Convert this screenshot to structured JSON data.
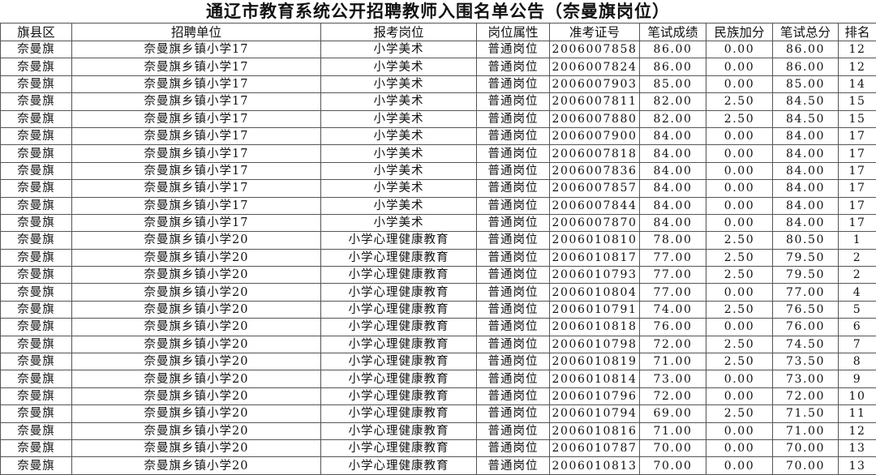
{
  "title": "通辽市教育系统公开招聘教师入围名单公告（奈曼旗岗位）",
  "columns": [
    "旗县区",
    "招聘单位",
    "报考岗位",
    "岗位属性",
    "准考证号",
    "笔试成绩",
    "民族加分",
    "笔试总分",
    "排名"
  ],
  "rows": [
    [
      "奈曼旗",
      "奈曼旗乡镇小学17",
      "小学美术",
      "普通岗位",
      "2006007858",
      "86.00",
      "0.00",
      "86.00",
      "12"
    ],
    [
      "奈曼旗",
      "奈曼旗乡镇小学17",
      "小学美术",
      "普通岗位",
      "2006007824",
      "86.00",
      "0.00",
      "86.00",
      "12"
    ],
    [
      "奈曼旗",
      "奈曼旗乡镇小学17",
      "小学美术",
      "普通岗位",
      "2006007903",
      "85.00",
      "0.00",
      "85.00",
      "14"
    ],
    [
      "奈曼旗",
      "奈曼旗乡镇小学17",
      "小学美术",
      "普通岗位",
      "2006007811",
      "82.00",
      "2.50",
      "84.50",
      "15"
    ],
    [
      "奈曼旗",
      "奈曼旗乡镇小学17",
      "小学美术",
      "普通岗位",
      "2006007880",
      "82.00",
      "2.50",
      "84.50",
      "15"
    ],
    [
      "奈曼旗",
      "奈曼旗乡镇小学17",
      "小学美术",
      "普通岗位",
      "2006007900",
      "84.00",
      "0.00",
      "84.00",
      "17"
    ],
    [
      "奈曼旗",
      "奈曼旗乡镇小学17",
      "小学美术",
      "普通岗位",
      "2006007818",
      "84.00",
      "0.00",
      "84.00",
      "17"
    ],
    [
      "奈曼旗",
      "奈曼旗乡镇小学17",
      "小学美术",
      "普通岗位",
      "2006007836",
      "84.00",
      "0.00",
      "84.00",
      "17"
    ],
    [
      "奈曼旗",
      "奈曼旗乡镇小学17",
      "小学美术",
      "普通岗位",
      "2006007857",
      "84.00",
      "0.00",
      "84.00",
      "17"
    ],
    [
      "奈曼旗",
      "奈曼旗乡镇小学17",
      "小学美术",
      "普通岗位",
      "2006007844",
      "84.00",
      "0.00",
      "84.00",
      "17"
    ],
    [
      "奈曼旗",
      "奈曼旗乡镇小学17",
      "小学美术",
      "普通岗位",
      "2006007870",
      "84.00",
      "0.00",
      "84.00",
      "17"
    ],
    [
      "奈曼旗",
      "奈曼旗乡镇小学20",
      "小学心理健康教育",
      "普通岗位",
      "2006010810",
      "78.00",
      "2.50",
      "80.50",
      "1"
    ],
    [
      "奈曼旗",
      "奈曼旗乡镇小学20",
      "小学心理健康教育",
      "普通岗位",
      "2006010817",
      "77.00",
      "2.50",
      "79.50",
      "2"
    ],
    [
      "奈曼旗",
      "奈曼旗乡镇小学20",
      "小学心理健康教育",
      "普通岗位",
      "2006010793",
      "77.00",
      "2.50",
      "79.50",
      "2"
    ],
    [
      "奈曼旗",
      "奈曼旗乡镇小学20",
      "小学心理健康教育",
      "普通岗位",
      "2006010804",
      "77.00",
      "0.00",
      "77.00",
      "4"
    ],
    [
      "奈曼旗",
      "奈曼旗乡镇小学20",
      "小学心理健康教育",
      "普通岗位",
      "2006010791",
      "74.00",
      "2.50",
      "76.50",
      "5"
    ],
    [
      "奈曼旗",
      "奈曼旗乡镇小学20",
      "小学心理健康教育",
      "普通岗位",
      "2006010818",
      "76.00",
      "0.00",
      "76.00",
      "6"
    ],
    [
      "奈曼旗",
      "奈曼旗乡镇小学20",
      "小学心理健康教育",
      "普通岗位",
      "2006010798",
      "72.00",
      "2.50",
      "74.50",
      "7"
    ],
    [
      "奈曼旗",
      "奈曼旗乡镇小学20",
      "小学心理健康教育",
      "普通岗位",
      "2006010819",
      "71.00",
      "2.50",
      "73.50",
      "8"
    ],
    [
      "奈曼旗",
      "奈曼旗乡镇小学20",
      "小学心理健康教育",
      "普通岗位",
      "2006010814",
      "73.00",
      "0.00",
      "73.00",
      "9"
    ],
    [
      "奈曼旗",
      "奈曼旗乡镇小学20",
      "小学心理健康教育",
      "普通岗位",
      "2006010796",
      "72.00",
      "0.00",
      "72.00",
      "10"
    ],
    [
      "奈曼旗",
      "奈曼旗乡镇小学20",
      "小学心理健康教育",
      "普通岗位",
      "2006010794",
      "69.00",
      "2.50",
      "71.50",
      "11"
    ],
    [
      "奈曼旗",
      "奈曼旗乡镇小学20",
      "小学心理健康教育",
      "普通岗位",
      "2006010816",
      "71.00",
      "0.00",
      "71.00",
      "12"
    ],
    [
      "奈曼旗",
      "奈曼旗乡镇小学20",
      "小学心理健康教育",
      "普通岗位",
      "2006010787",
      "70.00",
      "0.00",
      "70.00",
      "13"
    ],
    [
      "奈曼旗",
      "奈曼旗乡镇小学20",
      "小学心理健康教育",
      "普通岗位",
      "2006010813",
      "70.00",
      "0.00",
      "70.00",
      "13"
    ]
  ]
}
